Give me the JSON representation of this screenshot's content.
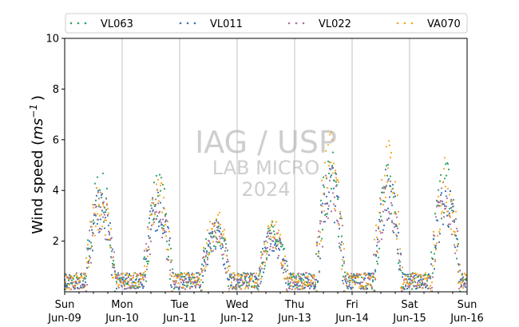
{
  "chart_data": {
    "type": "scatter",
    "ylabel_text": "Wind speed (",
    "ylabel_unit": "ms",
    "ylabel_exp": "−1",
    "ylabel_close": ")",
    "ylim": [
      0,
      10
    ],
    "yticks": [
      2,
      4,
      6,
      8,
      10
    ],
    "xlim": [
      "2024-06-09T00:00",
      "2024-06-16T00:00"
    ],
    "xticks": [
      {
        "day": "Sun",
        "date": "Jun-09"
      },
      {
        "day": "Mon",
        "date": "Jun-10"
      },
      {
        "day": "Tue",
        "date": "Jun-11"
      },
      {
        "day": "Wed",
        "date": "Jun-12"
      },
      {
        "day": "Thu",
        "date": "Jun-13"
      },
      {
        "day": "Fri",
        "date": "Jun-14"
      },
      {
        "day": "Sat",
        "date": "Jun-15"
      },
      {
        "day": "Sun",
        "date": "Jun-16"
      }
    ],
    "grid": "vertical-day-lines",
    "legend_position": "top",
    "watermark": [
      "IAG / USP",
      "LAB MICRO",
      "2024"
    ],
    "series": [
      {
        "name": "VL063",
        "color": "#2ca25f",
        "daily_peak": [
          {
            "day": 0,
            "peak": 3.9
          },
          {
            "day": 1,
            "peak": 3.8
          },
          {
            "day": 2,
            "peak": 2.4
          },
          {
            "day": 3,
            "peak": 2.2
          },
          {
            "day": 4,
            "peak": 4.5
          },
          {
            "day": 5,
            "peak": 4.0
          },
          {
            "day": 6,
            "peak": 4.3
          }
        ]
      },
      {
        "name": "VL011",
        "color": "#3a6fb5",
        "daily_peak": [
          {
            "day": 0,
            "peak": 3.2
          },
          {
            "day": 1,
            "peak": 3.3
          },
          {
            "day": 2,
            "peak": 2.3
          },
          {
            "day": 3,
            "peak": 2.1
          },
          {
            "day": 4,
            "peak": 4.2
          },
          {
            "day": 5,
            "peak": 3.9
          },
          {
            "day": 6,
            "peak": 3.5
          }
        ]
      },
      {
        "name": "VL022",
        "color": "#b0709a",
        "daily_peak": [
          {
            "day": 0,
            "peak": 3.3
          },
          {
            "day": 1,
            "peak": 3.2
          },
          {
            "day": 2,
            "peak": 2.2
          },
          {
            "day": 3,
            "peak": 2.0
          },
          {
            "day": 4,
            "peak": 4.1
          },
          {
            "day": 5,
            "peak": 3.8
          },
          {
            "day": 6,
            "peak": 3.7
          }
        ]
      },
      {
        "name": "VA070",
        "color": "#f5a623",
        "daily_peak": [
          {
            "day": 0,
            "peak": 3.5
          },
          {
            "day": 1,
            "peak": 3.6
          },
          {
            "day": 2,
            "peak": 2.6
          },
          {
            "day": 3,
            "peak": 2.3
          },
          {
            "day": 4,
            "peak": 5.0
          },
          {
            "day": 5,
            "peak": 4.8
          },
          {
            "day": 6,
            "peak": 4.2
          }
        ]
      }
    ]
  }
}
